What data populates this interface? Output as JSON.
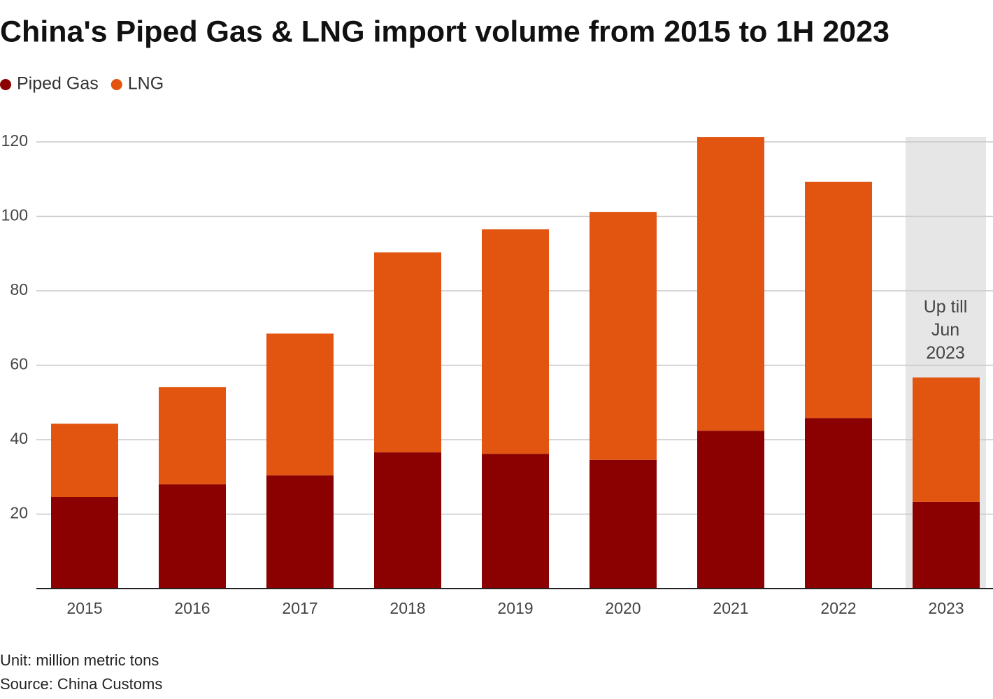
{
  "chart_data": {
    "type": "stacked_bar",
    "title": "China's Piped Gas & LNG import volume from 2015 to 1H 2023",
    "categories": [
      "2015",
      "2016",
      "2017",
      "2018",
      "2019",
      "2020",
      "2021",
      "2022",
      "2023"
    ],
    "series": [
      {
        "name": "Piped Gas",
        "color": "#8b0000",
        "values": [
          24.6,
          28.0,
          30.4,
          36.6,
          36.2,
          34.6,
          42.4,
          45.8,
          23.3
        ]
      },
      {
        "name": "LNG",
        "color": "#e25511",
        "values": [
          19.7,
          26.1,
          38.1,
          53.7,
          60.3,
          66.6,
          78.9,
          63.5,
          33.4
        ]
      }
    ],
    "ylim": [
      0,
      120
    ],
    "yticks": [
      20,
      40,
      60,
      80,
      100,
      120
    ],
    "grid": true,
    "annotation": "Up till Jun 2023",
    "footnotes": [
      "Unit: million metric tons",
      "Source: China Customs"
    ]
  }
}
